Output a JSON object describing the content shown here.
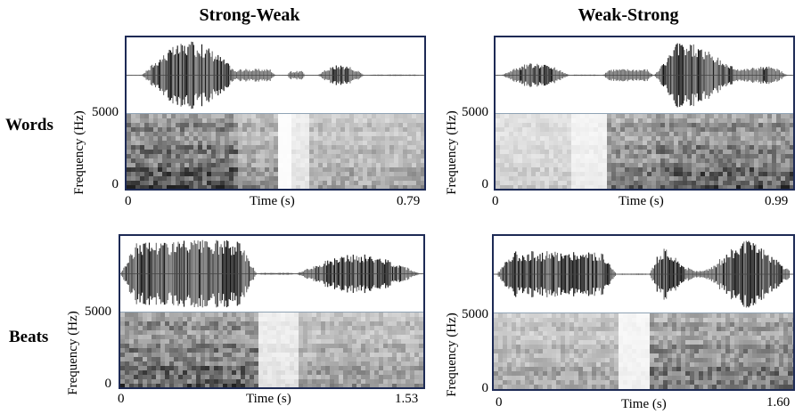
{
  "columns": [
    "Strong-Weak",
    "Weak-Strong"
  ],
  "rows": [
    "Words",
    "Beats"
  ],
  "axis": {
    "y_label": "Frequency (Hz)",
    "y_top": "5000",
    "y_bottom": "0",
    "x_label": "Time (s)",
    "x_start": "0"
  },
  "panels": [
    {
      "id": "words-strong-weak",
      "x_end": "0.79"
    },
    {
      "id": "words-weak-strong",
      "x_end": "0.99"
    },
    {
      "id": "beats-strong-weak",
      "x_end": "1.53"
    },
    {
      "id": "beats-weak-strong",
      "x_end": "1.60"
    }
  ],
  "colors": {
    "frame": "#1d2a55",
    "waveform": "#1a1a1a",
    "divider": "#8fa3b5"
  }
}
